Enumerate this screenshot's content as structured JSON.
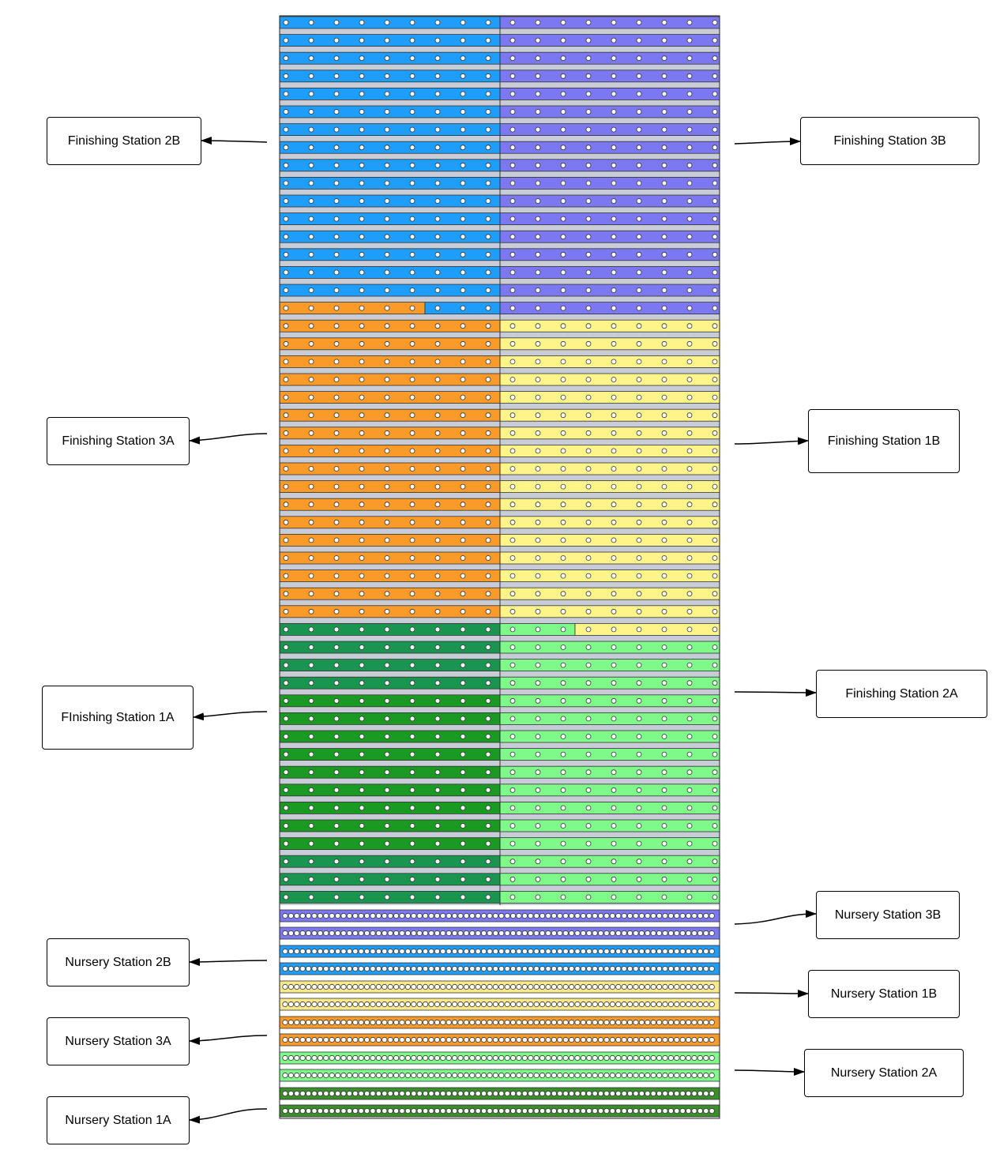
{
  "colors": {
    "finishing_2b": "#1f9dfa",
    "finishing_3b": "#7b78f2",
    "finishing_3a": "#fa9a28",
    "finishing_1b": "#fdf58a",
    "finishing_1a_dark": "#1a9550",
    "finishing_1a_bright": "#1b9a23",
    "finishing_2a": "#7ff98a",
    "nursery_3b": "#7b78f2",
    "nursery_2b": "#1f9dfa",
    "nursery_1b": "#fae88c",
    "nursery_3a": "#fa9a28",
    "nursery_2a": "#7ff98a",
    "nursery_1a": "#3a8f2a",
    "aisle": "#c8ccd6"
  },
  "labels": {
    "finishing_2b": "Finishing Station 2B",
    "finishing_3b": "Finishing Station 3B",
    "finishing_3a": "Finishing Station 3A",
    "finishing_1b": "Finishing Station 1B",
    "finishing_1a": "FInishing Station 1A",
    "finishing_2a": "Finishing Station 2A",
    "nursery_3b": "Nursery Station 3B",
    "nursery_2b": "Nursery Station 2B",
    "nursery_1b": "Nursery Station 1B",
    "nursery_3a": "Nursery Station 3A",
    "nursery_2a": "Nursery Station 2A",
    "nursery_1a": "Nursery Station 1A"
  }
}
